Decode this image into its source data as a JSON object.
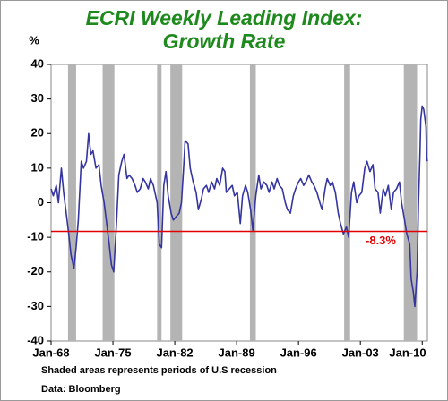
{
  "chart_data": {
    "type": "line",
    "title": [
      "ECRI Weekly Leading Index:",
      "Growth Rate"
    ],
    "y_label": "%",
    "notes": [
      "Shaded areas represents periods of U.S recession",
      "Data: Bloomberg"
    ],
    "xlim": [
      "1968-01",
      "2010-08"
    ],
    "xticks": [
      {
        "value": "1968-01",
        "label": "Jan-68"
      },
      {
        "value": "1975-01",
        "label": "Jan-75"
      },
      {
        "value": "1982-01",
        "label": "Jan-82"
      },
      {
        "value": "1989-01",
        "label": "Jan-89"
      },
      {
        "value": "1996-01",
        "label": "Jan-96"
      },
      {
        "value": "2003-01",
        "label": "Jan-03"
      },
      {
        "value": "2010-01",
        "label": "Jan-10"
      }
    ],
    "ylim": [
      -40,
      40
    ],
    "yticks": [
      -40,
      -30,
      -20,
      -10,
      0,
      10,
      20,
      30,
      40
    ],
    "recessions": [
      [
        "1969-12",
        "1970-11"
      ],
      [
        "1973-11",
        "1975-03"
      ],
      [
        "1980-01",
        "1980-07"
      ],
      [
        "1981-07",
        "1982-11"
      ],
      [
        "1990-07",
        "1991-03"
      ],
      [
        "2001-03",
        "2001-11"
      ],
      [
        "2007-12",
        "2009-06"
      ]
    ],
    "recession_color": "#b4b4b4",
    "reference": {
      "value": -8.3,
      "label": "-8.3%",
      "color": "#e00000"
    },
    "series": [
      {
        "color": "#3535a0",
        "x": [
          "1968-01",
          "1968-04",
          "1968-08",
          "1968-11",
          "1969-03",
          "1969-06",
          "1969-09",
          "1970-01",
          "1970-04",
          "1970-08",
          "1970-11",
          "1971-02",
          "1971-06",
          "1971-09",
          "1972-01",
          "1972-04",
          "1972-07",
          "1972-10",
          "1973-02",
          "1973-06",
          "1973-09",
          "1974-01",
          "1974-04",
          "1974-08",
          "1974-11",
          "1975-02",
          "1975-06",
          "1975-09",
          "1976-01",
          "1976-04",
          "1976-08",
          "1976-11",
          "1977-03",
          "1977-07",
          "1977-10",
          "1978-02",
          "1978-06",
          "1978-09",
          "1979-01",
          "1979-04",
          "1979-08",
          "1980-01",
          "1980-04",
          "1980-07",
          "1980-10",
          "1981-01",
          "1981-04",
          "1981-08",
          "1981-11",
          "1982-03",
          "1982-07",
          "1982-10",
          "1983-01",
          "1983-03",
          "1983-07",
          "1983-10",
          "1984-02",
          "1984-06",
          "1984-09",
          "1985-01",
          "1985-04",
          "1985-08",
          "1985-11",
          "1986-03",
          "1986-07",
          "1986-10",
          "1987-02",
          "1987-06",
          "1987-09",
          "1987-11",
          "1988-03",
          "1988-07",
          "1988-10",
          "1989-02",
          "1989-06",
          "1989-09",
          "1990-01",
          "1990-04",
          "1990-08",
          "1990-11",
          "1991-03",
          "1991-07",
          "1991-10",
          "1992-02",
          "1992-06",
          "1992-09",
          "1993-01",
          "1993-04",
          "1993-08",
          "1993-11",
          "1994-03",
          "1994-07",
          "1994-10",
          "1995-02",
          "1995-06",
          "1995-09",
          "1996-01",
          "1996-04",
          "1996-08",
          "1996-11",
          "1997-03",
          "1997-07",
          "1997-10",
          "1998-02",
          "1998-06",
          "1998-09",
          "1999-01",
          "1999-04",
          "1999-08",
          "1999-11",
          "2000-03",
          "2000-07",
          "2000-10",
          "2001-02",
          "2001-06",
          "2001-09",
          "2002-01",
          "2002-04",
          "2002-08",
          "2002-11",
          "2003-03",
          "2003-07",
          "2003-10",
          "2004-02",
          "2004-06",
          "2004-09",
          "2005-01",
          "2005-04",
          "2005-08",
          "2005-11",
          "2006-03",
          "2006-07",
          "2006-10",
          "2007-02",
          "2007-06",
          "2007-09",
          "2008-01",
          "2008-04",
          "2008-08",
          "2008-10",
          "2009-01",
          "2009-03",
          "2009-06",
          "2009-08",
          "2009-10",
          "2009-11",
          "2010-01",
          "2010-03",
          "2010-06",
          "2010-07",
          "2010-08"
        ],
        "values": [
          4,
          2,
          5,
          0,
          10,
          3,
          -2,
          -9,
          -15,
          -19,
          -13,
          -5,
          12,
          10,
          12,
          20,
          14,
          15,
          10,
          11,
          5,
          0,
          -5,
          -12,
          -18,
          -20,
          -5,
          8,
          12,
          14,
          7,
          8,
          7,
          5,
          3,
          4,
          7,
          6,
          4,
          7,
          5,
          0,
          -12,
          -13,
          5,
          9,
          2,
          -3,
          -5,
          -4,
          -3,
          0,
          10,
          18,
          17,
          10,
          6,
          3,
          -2,
          1,
          4,
          5,
          3,
          6,
          4,
          7,
          5,
          10,
          9,
          3,
          4,
          5,
          2,
          3,
          -6,
          2,
          5,
          3,
          -2,
          -8,
          2,
          8,
          4,
          6,
          5,
          3,
          6,
          4,
          7,
          5,
          4,
          0,
          -2,
          -3,
          2,
          4,
          6,
          7,
          5,
          6,
          8,
          6,
          5,
          3,
          0,
          -2,
          4,
          7,
          5,
          6,
          3,
          -3,
          -6,
          -9,
          -7,
          -10,
          3,
          6,
          0,
          2,
          3,
          10,
          12,
          9,
          11,
          4,
          3,
          -3,
          4,
          2,
          5,
          -2,
          3,
          4,
          6,
          0,
          -5,
          -9,
          -12,
          -22,
          -26,
          -30,
          -20,
          0,
          15,
          24,
          28,
          27,
          22,
          13,
          12
        ]
      }
    ]
  }
}
